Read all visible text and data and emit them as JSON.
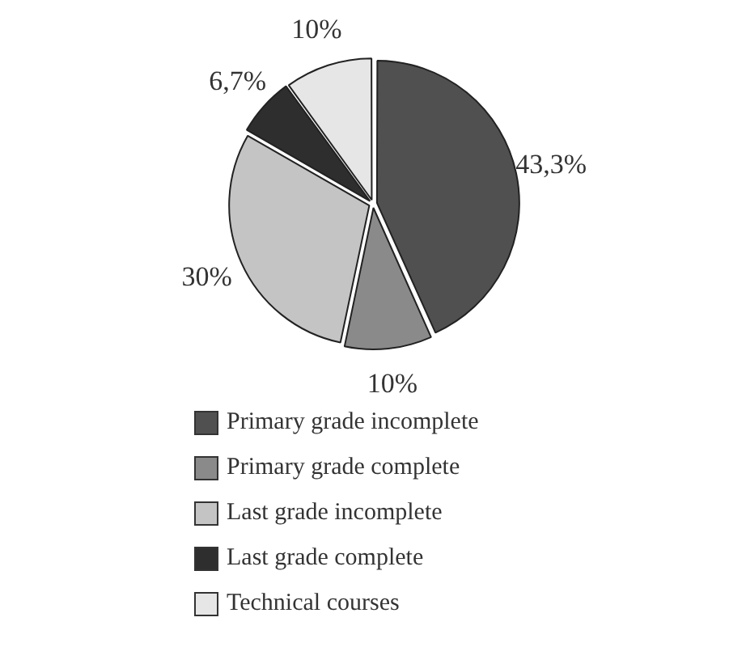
{
  "chart_data": {
    "type": "pie",
    "categories": [
      "Primary grade incomplete",
      "Primary grade complete",
      "Last grade incomplete",
      "Last grade complete",
      "Technical courses"
    ],
    "values": [
      43.3,
      10,
      30,
      6.7,
      10
    ],
    "colors": [
      "#505050",
      "#8a8a8a",
      "#c4c4c4",
      "#2e2e2e",
      "#e6e6e6"
    ],
    "value_labels": [
      "43,3%",
      "10%",
      "30%",
      "6,7%",
      "10%"
    ],
    "legend": "bottom"
  }
}
